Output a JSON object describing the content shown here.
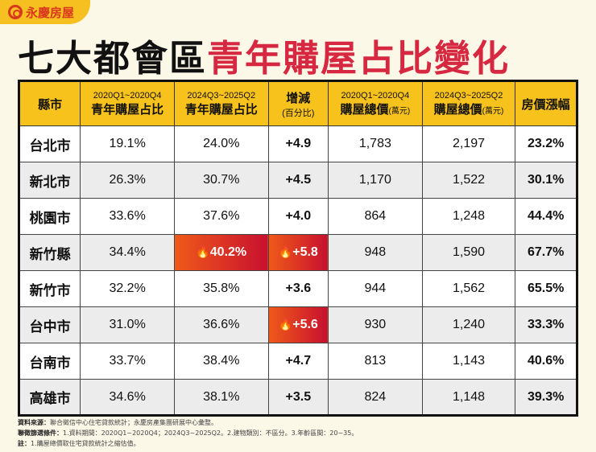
{
  "brand": {
    "name": "永慶房屋"
  },
  "title": {
    "part1": "七大都會區",
    "part2": "青年購屋占比變化"
  },
  "headers": [
    {
      "top": "",
      "main": "縣市",
      "unit": ""
    },
    {
      "top": "2020Q1~2020Q4",
      "main": "青年購屋占比",
      "unit": ""
    },
    {
      "top": "2024Q3~2025Q2",
      "main": "青年購屋占比",
      "unit": ""
    },
    {
      "top": "",
      "main": "增減",
      "unit": "(百分比)"
    },
    {
      "top": "2020Q1~2020Q4",
      "main": "購屋總價",
      "unit": "(萬元)"
    },
    {
      "top": "2024Q3~2025Q2",
      "main": "購屋總價",
      "unit": "(萬元)"
    },
    {
      "top": "",
      "main": "房價漲幅",
      "unit": ""
    }
  ],
  "rows": [
    {
      "city": "台北市",
      "share2020": "19.1%",
      "share2024": "24.0%",
      "change": "+4.9",
      "price2020": "1,783",
      "price2024": "2,197",
      "growth": "23.2%"
    },
    {
      "city": "新北市",
      "share2020": "26.3%",
      "share2024": "30.7%",
      "change": "+4.5",
      "price2020": "1,170",
      "price2024": "1,522",
      "growth": "30.1%"
    },
    {
      "city": "桃園市",
      "share2020": "33.6%",
      "share2024": "37.6%",
      "change": "+4.0",
      "price2020": "864",
      "price2024": "1,248",
      "growth": "44.4%"
    },
    {
      "city": "新竹縣",
      "share2020": "34.4%",
      "share2024": "40.2%",
      "change": "+5.8",
      "price2020": "948",
      "price2024": "1,590",
      "growth": "67.7%",
      "hot_share": true,
      "hot_change": true
    },
    {
      "city": "新竹市",
      "share2020": "32.2%",
      "share2024": "35.8%",
      "change": "+3.6",
      "price2020": "944",
      "price2024": "1,562",
      "growth": "65.5%"
    },
    {
      "city": "台中市",
      "share2020": "31.0%",
      "share2024": "36.6%",
      "change": "+5.6",
      "price2020": "930",
      "price2024": "1,240",
      "growth": "33.3%",
      "hot_change": true
    },
    {
      "city": "台南市",
      "share2020": "33.7%",
      "share2024": "38.4%",
      "change": "+4.7",
      "price2020": "813",
      "price2024": "1,143",
      "growth": "40.6%"
    },
    {
      "city": "高雄市",
      "share2020": "34.6%",
      "share2024": "38.1%",
      "change": "+3.5",
      "price2020": "824",
      "price2024": "1,148",
      "growth": "39.3%"
    }
  ],
  "notes": [
    {
      "label": "資料來源：",
      "text": "聯合徵信中心住宅貸款統計；永慶房產集團研展中心彙整。"
    },
    {
      "label": "聯徵篩選條件：",
      "text": "1.資料期間：2020Q1~2020Q4；2024Q3~2025Q2。2.建物類別：不區分。3.年齡區間：20~35。"
    },
    {
      "label": "註：",
      "text": "1.購屋總價取住宅貸款統計之縮估值。"
    }
  ],
  "colors": {
    "header": "#f8c21c",
    "accent": "#d62840",
    "hot": "#e0301e"
  },
  "icons": {
    "hot": "fire-icon"
  }
}
